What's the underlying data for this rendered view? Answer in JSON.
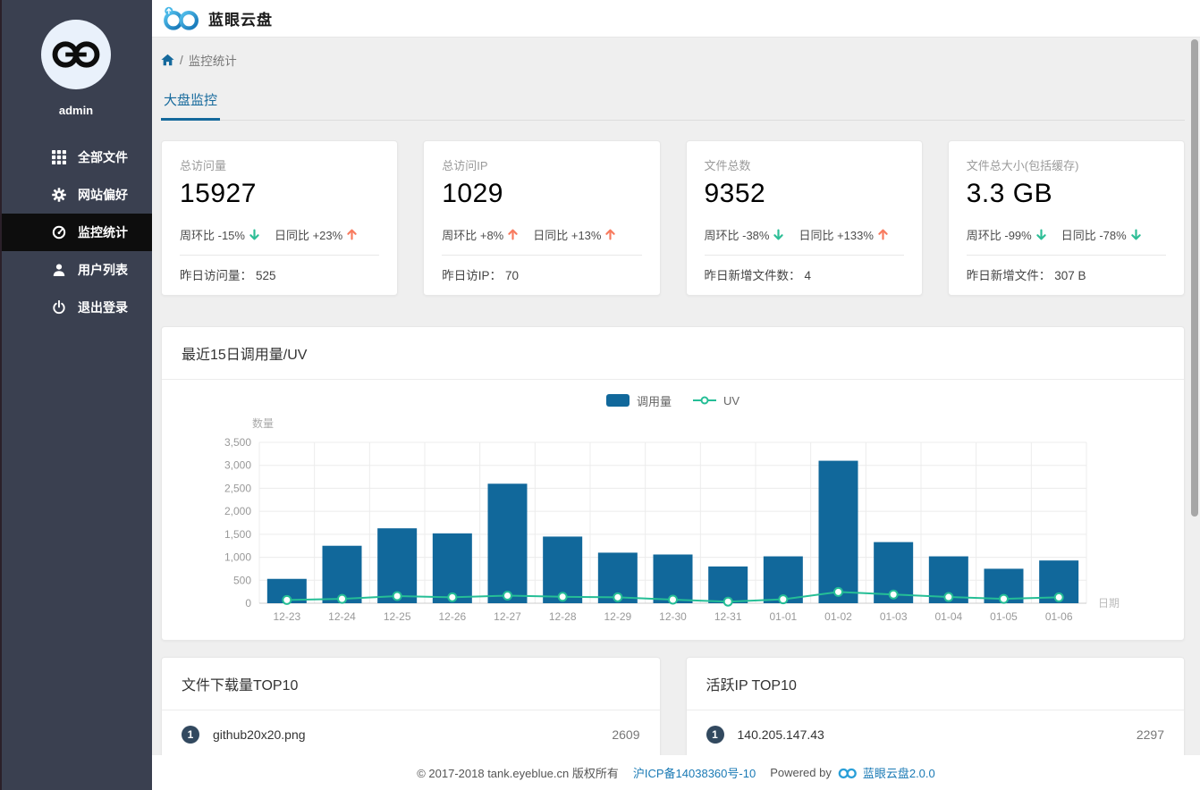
{
  "colors": {
    "accent": "#15699c",
    "sidebar_bg": "#3a4050",
    "sidebar_active": "#0d0d0d",
    "bar_color": "#11689b",
    "line_color": "#25be96",
    "up_color": "#f87b5f",
    "down_color": "#2dbe96",
    "badge_color": "#32495f",
    "link_color": "#1a7ab5"
  },
  "sidebar": {
    "username": "admin",
    "menu": [
      {
        "label": "全部文件",
        "icon": "grid-icon",
        "active": false
      },
      {
        "label": "网站偏好",
        "icon": "gear-icon",
        "active": false
      },
      {
        "label": "监控统计",
        "icon": "dashboard-icon",
        "active": true
      },
      {
        "label": "用户列表",
        "icon": "user-icon",
        "active": false
      },
      {
        "label": "退出登录",
        "icon": "power-icon",
        "active": false
      }
    ]
  },
  "header": {
    "app_title": "蓝眼云盘"
  },
  "breadcrumb": {
    "separator": "/",
    "current": "监控统计"
  },
  "tabs": [
    {
      "label": "大盘监控",
      "active": true
    }
  ],
  "stat_cards": [
    {
      "label": "总访问量",
      "value": "15927",
      "week": {
        "text": "周环比 -15%",
        "dir": "down"
      },
      "day": {
        "text": "日同比 +23%",
        "dir": "up"
      },
      "foot_label": "昨日访问量：",
      "foot_value": "525"
    },
    {
      "label": "总访问IP",
      "value": "1029",
      "week": {
        "text": "周环比 +8%",
        "dir": "up"
      },
      "day": {
        "text": "日同比 +13%",
        "dir": "up"
      },
      "foot_label": "昨日访IP：",
      "foot_value": "70"
    },
    {
      "label": "文件总数",
      "value": "9352",
      "week": {
        "text": "周环比 -38%",
        "dir": "down"
      },
      "day": {
        "text": "日同比 +133%",
        "dir": "up"
      },
      "foot_label": "昨日新增文件数：",
      "foot_value": "4"
    },
    {
      "label": "文件总大小(包括缓存)",
      "value": "3.3 GB",
      "week": {
        "text": "周环比 -99%",
        "dir": "down"
      },
      "day": {
        "text": "日同比 -78%",
        "dir": "down"
      },
      "foot_label": "昨日新增文件：",
      "foot_value": "307 B"
    }
  ],
  "chart_card": {
    "title": "最近15日调用量/UV"
  },
  "chart_data": {
    "type": "bar",
    "title": "最近15日调用量/UV",
    "categories": [
      "12-23",
      "12-24",
      "12-25",
      "12-26",
      "12-27",
      "12-28",
      "12-29",
      "12-30",
      "12-31",
      "01-01",
      "01-02",
      "01-03",
      "01-04",
      "01-05",
      "01-06"
    ],
    "series": [
      {
        "name": "调用量",
        "type": "bar",
        "color": "#11689b",
        "values": [
          530,
          1250,
          1630,
          1520,
          2600,
          1450,
          1100,
          1060,
          800,
          1020,
          3100,
          1330,
          1020,
          750,
          930
        ]
      },
      {
        "name": "UV",
        "type": "line",
        "color": "#25be96",
        "values": [
          70,
          95,
          155,
          130,
          165,
          140,
          130,
          78,
          35,
          85,
          245,
          190,
          135,
          95,
          128
        ]
      }
    ],
    "xlabel": "日期",
    "ylabel": "数量",
    "ylim": [
      0,
      3500
    ],
    "ytick_step": 500,
    "grid": true,
    "legend_position": "top-center"
  },
  "top_lists": [
    {
      "title": "文件下载量TOP10",
      "rows": [
        {
          "rank": "1",
          "name": "github20x20.png",
          "value": "2609"
        }
      ]
    },
    {
      "title": "活跃IP TOP10",
      "rows": [
        {
          "rank": "1",
          "name": "140.205.147.43",
          "value": "2297"
        }
      ]
    }
  ],
  "footer": {
    "copyright": "© 2017-2018 tank.eyeblue.cn 版权所有",
    "icp": "沪ICP备14038360号-10",
    "powered_by": "Powered by",
    "product": "蓝眼云盘2.0.0"
  }
}
